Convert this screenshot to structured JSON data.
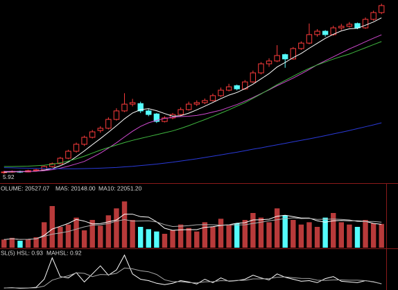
{
  "chart_data": [
    {
      "type": "candlestick",
      "open": [
        6.0,
        6.02,
        6.05,
        6.02,
        6.09,
        6.13,
        6.31,
        6.46,
        6.75,
        7.12,
        7.49,
        7.86,
        8.22,
        8.34,
        8.81,
        9.26,
        9.62,
        9.65,
        9.26,
        9.1,
        8.7,
        8.89,
        9.07,
        9.33,
        9.62,
        9.7,
        9.81,
        10.07,
        10.36,
        10.6,
        10.43,
        10.8,
        11.28,
        11.76,
        11.91,
        12.25,
        12.02,
        12.57,
        12.86,
        13.31,
        13.49,
        13.31,
        13.67,
        13.75,
        13.9,
        13.67,
        14.12,
        14.48
      ],
      "high": [
        6.08,
        6.1,
        6.09,
        6.14,
        6.18,
        6.36,
        6.52,
        6.82,
        7.2,
        7.58,
        7.95,
        8.25,
        8.45,
        8.92,
        9.4,
        10.2,
        9.9,
        9.75,
        9.35,
        9.15,
        8.98,
        9.15,
        9.45,
        9.75,
        9.82,
        9.92,
        10.18,
        10.5,
        10.7,
        10.66,
        10.9,
        11.4,
        11.85,
        12.05,
        12.75,
        12.3,
        12.65,
        12.95,
        13.9,
        13.6,
        13.55,
        13.78,
        13.88,
        13.98,
        13.95,
        14.22,
        14.58,
        14.95
      ],
      "low": [
        5.92,
        5.98,
        5.97,
        6.0,
        6.05,
        6.1,
        6.25,
        6.42,
        6.7,
        7.05,
        7.4,
        7.8,
        8.1,
        8.28,
        8.75,
        9.2,
        9.5,
        9.15,
        8.98,
        8.62,
        8.65,
        8.82,
        9.0,
        9.28,
        9.52,
        9.62,
        9.76,
        10.0,
        10.3,
        10.35,
        10.38,
        10.75,
        11.2,
        11.6,
        11.85,
        11.55,
        11.98,
        12.5,
        12.8,
        13.2,
        13.2,
        13.25,
        13.55,
        13.68,
        13.6,
        13.62,
        14.05,
        14.4
      ],
      "close": [
        6.02,
        6.05,
        6.02,
        6.09,
        6.13,
        6.31,
        6.46,
        6.75,
        7.12,
        7.49,
        7.86,
        8.15,
        8.34,
        8.81,
        9.26,
        9.62,
        9.7,
        9.26,
        9.07,
        8.7,
        8.89,
        9.07,
        9.33,
        9.62,
        9.7,
        9.81,
        10.07,
        10.36,
        10.54,
        10.43,
        10.8,
        11.28,
        11.76,
        11.91,
        12.2,
        12.02,
        12.57,
        12.86,
        13.31,
        13.49,
        13.31,
        13.67,
        13.75,
        13.86,
        13.67,
        14.12,
        14.48,
        14.85
      ],
      "up_color": "#ff3c3c",
      "down_color": "#54fcfc",
      "ylim": [
        5.5,
        15
      ],
      "min_label": 5.92,
      "series": [
        {
          "color": "#ffffff",
          "values": [
            6.01,
            6.03,
            6.03,
            6.05,
            6.06,
            6.12,
            6.2,
            6.35,
            6.55,
            6.83,
            7.14,
            7.47,
            7.79,
            8.13,
            8.48,
            8.84,
            9.15,
            9.33,
            9.38,
            9.27,
            9.12,
            8.98,
            9.01,
            9.14,
            9.32,
            9.51,
            9.71,
            9.91,
            10.1,
            10.24,
            10.44,
            10.68,
            10.96,
            11.24,
            11.59,
            11.83,
            12.09,
            12.31,
            12.59,
            12.85,
            13.11,
            13.33,
            13.51,
            13.62,
            13.65,
            13.81,
            13.98,
            14.2
          ]
        },
        {
          "color": "#d04ad0",
          "values": [
            6.05,
            6.05,
            6.04,
            6.05,
            6.06,
            6.09,
            6.14,
            6.22,
            6.33,
            6.45,
            6.58,
            6.8,
            7.02,
            7.29,
            7.57,
            7.88,
            8.18,
            8.44,
            8.63,
            8.76,
            8.86,
            8.92,
            8.96,
            8.98,
            9.02,
            9.1,
            9.2,
            9.3,
            9.45,
            9.6,
            9.78,
            9.97,
            10.18,
            10.38,
            10.6,
            10.8,
            11.0,
            11.23,
            11.46,
            11.71,
            11.92,
            12.13,
            12.34,
            12.55,
            12.74,
            12.93,
            13.12,
            13.3
          ]
        },
        {
          "color": "#40b840",
          "values": [
            6.31,
            6.31,
            6.32,
            6.33,
            6.35,
            6.38,
            6.43,
            6.5,
            6.6,
            6.72,
            6.86,
            7.02,
            7.18,
            7.32,
            7.45,
            7.58,
            7.7,
            7.8,
            7.9,
            8.0,
            8.1,
            8.2,
            8.33,
            8.48,
            8.64,
            8.8,
            8.97,
            9.14,
            9.32,
            9.51,
            9.7,
            9.93,
            10.16,
            10.4,
            10.65,
            10.88,
            11.1,
            11.32,
            11.52,
            11.7,
            11.86,
            12.01,
            12.15,
            12.28,
            12.45,
            12.61,
            12.78,
            12.94
          ]
        },
        {
          "color": "#2a3ad8",
          "values": [
            6.25,
            6.24,
            6.23,
            6.22,
            6.21,
            6.2,
            6.2,
            6.19,
            6.19,
            6.19,
            6.2,
            6.21,
            6.22,
            6.24,
            6.26,
            6.29,
            6.32,
            6.36,
            6.4,
            6.44,
            6.49,
            6.54,
            6.6,
            6.66,
            6.72,
            6.79,
            6.86,
            6.93,
            7.0,
            7.07,
            7.15,
            7.23,
            7.3,
            7.38,
            7.46,
            7.54,
            7.62,
            7.7,
            7.78,
            7.86,
            7.95,
            8.04,
            8.13,
            8.22,
            8.32,
            8.42,
            8.52,
            8.63
          ]
        }
      ]
    },
    {
      "type": "bar",
      "label": "OLUME: 20527.07",
      "ma5_label": "MA5: 20148.00",
      "ma10_label": "MA10: 22051.20",
      "values": [
        7000,
        8500,
        6000,
        7500,
        9000,
        22000,
        36000,
        18000,
        20000,
        26000,
        15000,
        24000,
        19000,
        28000,
        34000,
        40000,
        24000,
        18000,
        16000,
        14000,
        12000,
        15000,
        20000,
        17000,
        14000,
        22000,
        18000,
        25000,
        20000,
        21000,
        24000,
        30000,
        26000,
        22000,
        34000,
        28000,
        24000,
        20000,
        22000,
        18000,
        26000,
        30000,
        22000,
        20000,
        18000,
        24000,
        21000,
        20527
      ],
      "up_color": "#b83a3a",
      "down_color": "#54fcfc",
      "ylim": [
        0,
        45000
      ],
      "series": [
        {
          "color": "#ffffff",
          "values": [
            7000,
            7750,
            7170,
            7250,
            7600,
            10600,
            16100,
            18500,
            21000,
            24400,
            23000,
            20600,
            20800,
            22400,
            24000,
            29000,
            29000,
            26800,
            26400,
            22400,
            16800,
            15000,
            15400,
            15600,
            15600,
            17600,
            18200,
            19200,
            19800,
            21200,
            21600,
            24000,
            24200,
            24600,
            27200,
            28000,
            26800,
            25600,
            25600,
            23200,
            22000,
            23200,
            23600,
            23200,
            23200,
            22800,
            21000,
            20148
          ]
        },
        {
          "color": "#b0b0b0",
          "values": [
            7000,
            7750,
            7170,
            7250,
            7600,
            9850,
            11700,
            12700,
            14000,
            16000,
            18000,
            19500,
            19800,
            20900,
            23000,
            24300,
            23000,
            23100,
            23300,
            22200,
            19900,
            18300,
            18600,
            19000,
            19800,
            20000,
            19800,
            19500,
            19800,
            19700,
            19800,
            21000,
            22000,
            23200,
            24200,
            25200,
            25800,
            25200,
            25400,
            24400,
            24600,
            24800,
            24400,
            24000,
            22700,
            22600,
            22600,
            22051
          ]
        }
      ]
    },
    {
      "type": "line",
      "label": "SL(5) HSL: 0.93",
      "ma_label": "MAHSL: 0.92",
      "ylim": [
        0,
        6
      ],
      "series": [
        {
          "color": "#ffffff",
          "values": [
            0.3,
            0.35,
            0.25,
            0.3,
            0.4,
            1.6,
            4.8,
            2.0,
            1.8,
            2.6,
            1.2,
            2.4,
            3.6,
            2.2,
            3.0,
            5.2,
            2.4,
            1.6,
            1.4,
            1.0,
            0.8,
            1.0,
            1.4,
            1.2,
            0.9,
            1.6,
            1.1,
            1.8,
            1.3,
            1.4,
            1.6,
            2.2,
            1.8,
            1.5,
            2.4,
            1.9,
            1.6,
            1.3,
            1.4,
            1.1,
            1.7,
            2.0,
            1.3,
            1.2,
            1.1,
            1.4,
            1.2,
            0.93
          ]
        },
        {
          "color": "#a8a8a8",
          "values": [
            0.3,
            0.33,
            0.3,
            0.3,
            0.32,
            0.58,
            1.47,
            1.83,
            2.12,
            2.56,
            2.48,
            2.0,
            2.32,
            2.28,
            2.48,
            3.28,
            3.16,
            2.88,
            2.72,
            2.32,
            1.52,
            1.24,
            1.24,
            1.12,
            1.06,
            1.22,
            1.24,
            1.4,
            1.36,
            1.44,
            1.44,
            1.66,
            1.66,
            1.7,
            1.9,
            1.96,
            1.84,
            1.74,
            1.72,
            1.46,
            1.42,
            1.5,
            1.5,
            1.46,
            1.46,
            1.4,
            1.24,
            0.92
          ]
        }
      ]
    }
  ]
}
